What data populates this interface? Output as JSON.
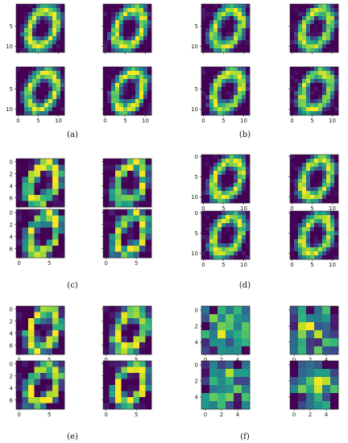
{
  "colormap": {
    "name": "viridis",
    "stops": [
      "#440154",
      "#482878",
      "#3e4989",
      "#31688e",
      "#26828e",
      "#1f9e89",
      "#35b779",
      "#6ece58",
      "#b5de2b",
      "#fde725"
    ]
  },
  "panels": [
    {
      "label": "(a)",
      "grid_size": 12,
      "pattern": "zero",
      "xticks": [
        "0",
        "5",
        "10"
      ],
      "yticks": [
        "5",
        "10"
      ],
      "images": [
        {
          "seed": 11,
          "x_tick_labels": false,
          "y_tick_labels": true
        },
        {
          "seed": 12,
          "x_tick_labels": false,
          "y_tick_labels": false
        },
        {
          "seed": 13,
          "x_tick_labels": true,
          "y_tick_labels": true
        },
        {
          "seed": 14,
          "x_tick_labels": true,
          "y_tick_labels": false
        }
      ]
    },
    {
      "label": "(b)",
      "grid_size": 12,
      "pattern": "zero",
      "xticks": [
        "0",
        "5",
        "10"
      ],
      "yticks": [
        "5",
        "10"
      ],
      "images": [
        {
          "seed": 21,
          "x_tick_labels": false,
          "y_tick_labels": true
        },
        {
          "seed": 22,
          "x_tick_labels": false,
          "y_tick_labels": false
        },
        {
          "seed": 23,
          "x_tick_labels": true,
          "y_tick_labels": true
        },
        {
          "seed": 24,
          "x_tick_labels": true,
          "y_tick_labels": false
        }
      ]
    },
    {
      "label": "(c)",
      "grid_size": 8,
      "pattern": "zero-coarse",
      "xticks": [
        "0",
        "5"
      ],
      "yticks": [
        "0",
        "2",
        "4",
        "6"
      ],
      "images": [
        {
          "seed": 31,
          "x_tick_labels": true,
          "y_tick_labels": true
        },
        {
          "seed": 32,
          "x_tick_labels": true,
          "y_tick_labels": false
        },
        {
          "seed": 33,
          "x_tick_labels": true,
          "y_tick_labels": true
        },
        {
          "seed": 34,
          "x_tick_labels": true,
          "y_tick_labels": false
        }
      ]
    },
    {
      "label": "(d)",
      "grid_size": 12,
      "pattern": "zero",
      "xticks": [
        "0",
        "5",
        "10"
      ],
      "yticks": [
        "0",
        "5",
        "10"
      ],
      "images": [
        {
          "seed": 41,
          "x_tick_labels": true,
          "y_tick_labels": true
        },
        {
          "seed": 42,
          "x_tick_labels": true,
          "y_tick_labels": false
        },
        {
          "seed": 43,
          "x_tick_labels": true,
          "y_tick_labels": true
        },
        {
          "seed": 44,
          "x_tick_labels": true,
          "y_tick_labels": false
        }
      ]
    },
    {
      "label": "(e)",
      "grid_size": 8,
      "pattern": "zero-coarse",
      "xticks": [
        "0",
        "5"
      ],
      "yticks": [
        "0",
        "2",
        "4",
        "6"
      ],
      "images": [
        {
          "seed": 51,
          "x_tick_labels": true,
          "y_tick_labels": true
        },
        {
          "seed": 52,
          "x_tick_labels": true,
          "y_tick_labels": false
        },
        {
          "seed": 53,
          "x_tick_labels": true,
          "y_tick_labels": true
        },
        {
          "seed": 54,
          "x_tick_labels": true,
          "y_tick_labels": false
        }
      ]
    },
    {
      "label": "(f)",
      "grid_size": 6,
      "pattern": "blob",
      "xticks": [
        "0",
        "2",
        "4"
      ],
      "yticks": [
        "0",
        "2",
        "4"
      ],
      "images": [
        {
          "seed": 61,
          "x_tick_labels": true,
          "y_tick_labels": true
        },
        {
          "seed": 62,
          "x_tick_labels": true,
          "y_tick_labels": false
        },
        {
          "seed": 63,
          "x_tick_labels": true,
          "y_tick_labels": true
        },
        {
          "seed": 64,
          "x_tick_labels": true,
          "y_tick_labels": false
        }
      ]
    }
  ]
}
